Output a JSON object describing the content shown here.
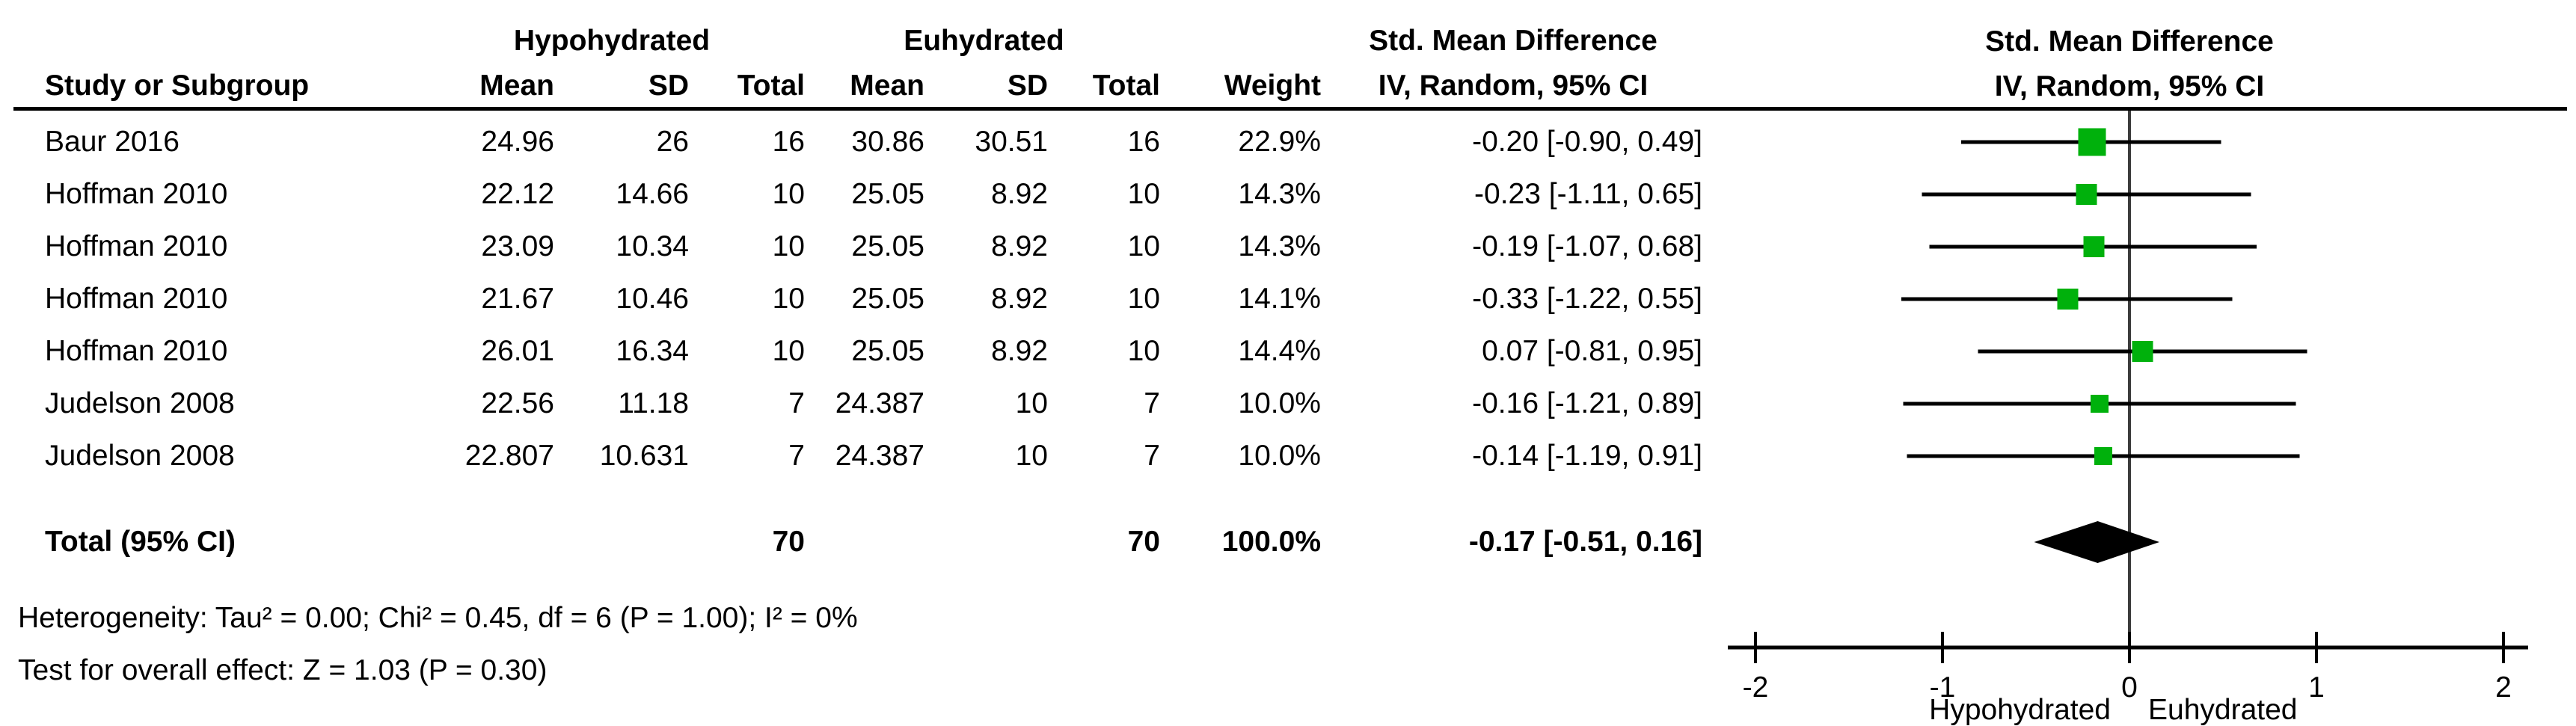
{
  "table": {
    "group1_header": "Hypohydrated",
    "group2_header": "Euhydrated",
    "effect_header_line1": "Std. Mean Difference",
    "effect_header_line2": "IV, Random, 95% CI",
    "plot_header_line1": "Std. Mean Difference",
    "plot_header_line2": "IV, Random, 95% CI",
    "col_headers": {
      "study": "Study or Subgroup",
      "mean1": "Mean",
      "sd1": "SD",
      "total1": "Total",
      "mean2": "Mean",
      "sd2": "SD",
      "total2": "Total",
      "weight": "Weight",
      "ci": "IV, Random, 95% CI"
    },
    "rows": [
      {
        "study": "Baur 2016",
        "mean1": "24.96",
        "sd1": "26",
        "total1": "16",
        "mean2": "30.86",
        "sd2": "30.51",
        "total2": "16",
        "weight": "22.9%",
        "ci_text": "-0.20 [-0.90, 0.49]"
      },
      {
        "study": "Hoffman 2010",
        "mean1": "22.12",
        "sd1": "14.66",
        "total1": "10",
        "mean2": "25.05",
        "sd2": "8.92",
        "total2": "10",
        "weight": "14.3%",
        "ci_text": "-0.23 [-1.11, 0.65]"
      },
      {
        "study": "Hoffman 2010",
        "mean1": "23.09",
        "sd1": "10.34",
        "total1": "10",
        "mean2": "25.05",
        "sd2": "8.92",
        "total2": "10",
        "weight": "14.3%",
        "ci_text": "-0.19 [-1.07, 0.68]"
      },
      {
        "study": "Hoffman 2010",
        "mean1": "21.67",
        "sd1": "10.46",
        "total1": "10",
        "mean2": "25.05",
        "sd2": "8.92",
        "total2": "10",
        "weight": "14.1%",
        "ci_text": "-0.33 [-1.22, 0.55]"
      },
      {
        "study": "Hoffman 2010",
        "mean1": "26.01",
        "sd1": "16.34",
        "total1": "10",
        "mean2": "25.05",
        "sd2": "8.92",
        "total2": "10",
        "weight": "14.4%",
        "ci_text": "0.07 [-0.81, 0.95]"
      },
      {
        "study": "Judelson 2008",
        "mean1": "22.56",
        "sd1": "11.18",
        "total1": "7",
        "mean2": "24.387",
        "sd2": "10",
        "total2": "7",
        "weight": "10.0%",
        "ci_text": "-0.16 [-1.21, 0.89]"
      },
      {
        "study": "Judelson 2008",
        "mean1": "22.807",
        "sd1": "10.631",
        "total1": "7",
        "mean2": "24.387",
        "sd2": "10",
        "total2": "7",
        "weight": "10.0%",
        "ci_text": "-0.14 [-1.19, 0.91]"
      }
    ],
    "total_row": {
      "label": "Total (95% CI)",
      "total1": "70",
      "total2": "70",
      "weight": "100.0%",
      "ci_text": "-0.17 [-0.51, 0.16]"
    },
    "heterogeneity": "Heterogeneity: Tau² = 0.00; Chi² = 0.45, df = 6 (P = 1.00); I² = 0%",
    "overall_effect": "Test for overall effect: Z = 1.03 (P = 0.30)"
  },
  "chart_data": {
    "type": "forest",
    "effect_measure": "Std. Mean Difference",
    "method": "IV, Random, 95% CI",
    "xlim": [
      -2,
      2
    ],
    "x_ticks": [
      -2,
      -1,
      0,
      1,
      2
    ],
    "x_axis_left_label": "Hypohydrated",
    "x_axis_right_label": "Euhydrated",
    "marker_color": "#00b10c",
    "zero_line_color": "#3c3c3c",
    "line_color": "#000000",
    "studies": [
      {
        "name": "Baur 2016",
        "est": -0.2,
        "lo": -0.9,
        "hi": 0.49,
        "weight_pct": 22.9
      },
      {
        "name": "Hoffman 2010",
        "est": -0.23,
        "lo": -1.11,
        "hi": 0.65,
        "weight_pct": 14.3
      },
      {
        "name": "Hoffman 2010",
        "est": -0.19,
        "lo": -1.07,
        "hi": 0.68,
        "weight_pct": 14.3
      },
      {
        "name": "Hoffman 2010",
        "est": -0.33,
        "lo": -1.22,
        "hi": 0.55,
        "weight_pct": 14.1
      },
      {
        "name": "Hoffman 2010",
        "est": 0.07,
        "lo": -0.81,
        "hi": 0.95,
        "weight_pct": 14.4
      },
      {
        "name": "Judelson 2008",
        "est": -0.16,
        "lo": -1.21,
        "hi": 0.89,
        "weight_pct": 10.0
      },
      {
        "name": "Judelson 2008",
        "est": -0.14,
        "lo": -1.19,
        "hi": 0.91,
        "weight_pct": 10.0
      }
    ],
    "total": {
      "label": "Total (95% CI)",
      "est": -0.17,
      "lo": -0.51,
      "hi": 0.16,
      "weight_pct": 100.0
    }
  }
}
